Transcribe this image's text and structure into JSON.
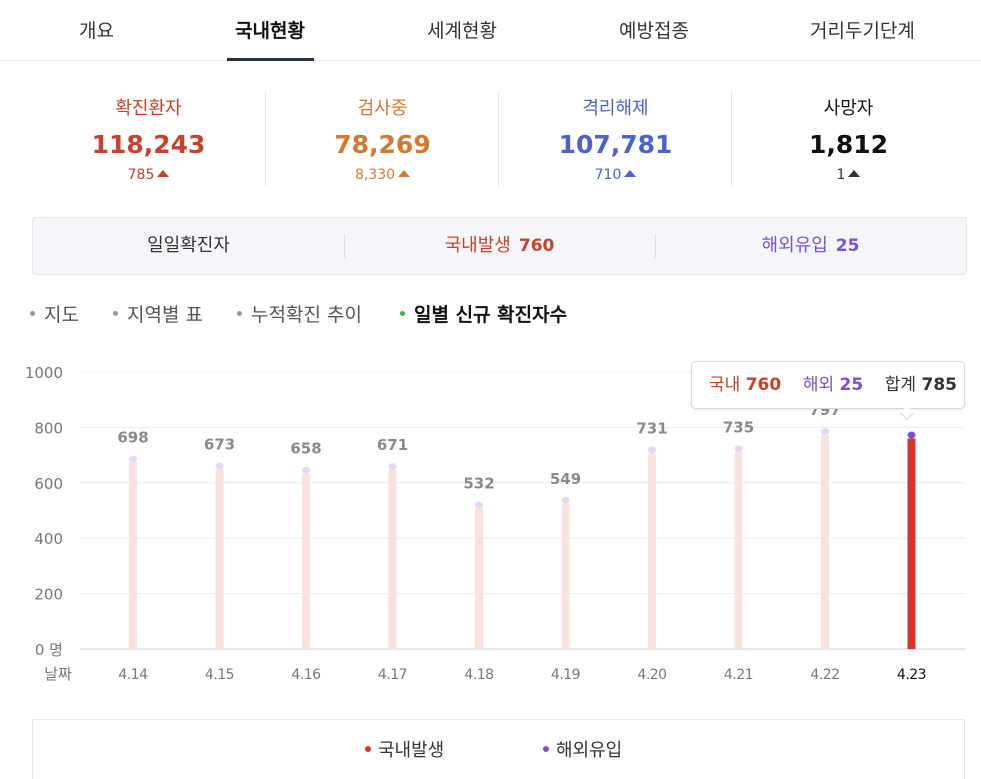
{
  "tabs": [
    {
      "label": "개요"
    },
    {
      "label": "국내현황"
    },
    {
      "label": "세계현황"
    },
    {
      "label": "예방접종"
    },
    {
      "label": "거리두기단계"
    }
  ],
  "stats": [
    {
      "label": "확진환자",
      "value": "118,243",
      "delta": "785",
      "color": "#c8412a"
    },
    {
      "label": "검사중",
      "value": "78,269",
      "delta": "8,330",
      "color": "#d5782f"
    },
    {
      "label": "격리해제",
      "value": "107,781",
      "delta": "710",
      "color": "#4a62cf"
    },
    {
      "label": "사망자",
      "value": "1,812",
      "delta": "1",
      "color": "#111111"
    }
  ],
  "daily": {
    "label": "일일확진자",
    "domestic_label": "국내발생",
    "domestic_value": "760",
    "overseas_label": "해외유입",
    "overseas_value": "25"
  },
  "subnav": [
    "지도",
    "지역별 표",
    "누적확진 추이",
    "일별 신규 확진자수"
  ],
  "tooltip": {
    "domestic_label": "국내",
    "domestic_value": "760",
    "overseas_label": "해외",
    "overseas_value": "25",
    "total_label": "합계",
    "total_value": "785"
  },
  "legend": [
    "국내발생",
    "해외유입"
  ],
  "colors": {
    "domestic": "#d9342b",
    "overseas": "#7b4fd6",
    "faded_domestic": "#fbe1de",
    "faded_overseas": "#e2d7f6"
  },
  "chart_data": {
    "type": "bar",
    "xlabel": "날짜",
    "ylim": [
      0,
      1000
    ],
    "yticks": [
      "0 명",
      "200",
      "400",
      "600",
      "800",
      "1000"
    ],
    "categories": [
      "4.14",
      "4.15",
      "4.16",
      "4.17",
      "4.18",
      "4.19",
      "4.20",
      "4.21",
      "4.22",
      "4.23"
    ],
    "totals": [
      698,
      673,
      658,
      671,
      532,
      549,
      731,
      735,
      797,
      785
    ],
    "series": [
      {
        "name": "국내발생",
        "values": [
          673,
          648,
          633,
          646,
          507,
          524,
          706,
          710,
          772,
          760
        ]
      },
      {
        "name": "해외유입",
        "values": [
          25,
          25,
          25,
          25,
          25,
          25,
          25,
          25,
          25,
          25
        ]
      }
    ],
    "highlight_index": 9,
    "grid": true
  }
}
